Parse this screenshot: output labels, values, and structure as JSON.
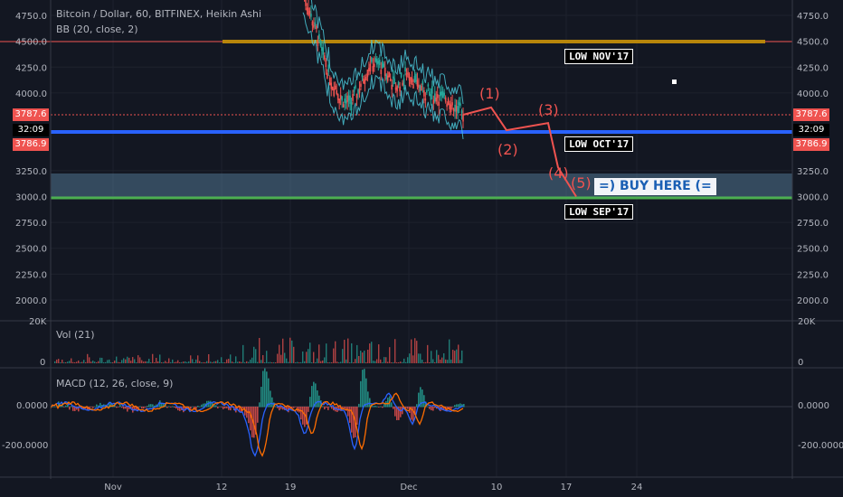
{
  "header": {
    "symbol": "Bitcoin / Dollar, 60, BITFINEX, Heikin Ashi",
    "bb": "BB (20, close, 2)",
    "vol": "Vol (21)",
    "macd": "MACD (12, 26, close, 9)"
  },
  "price_axis": {
    "ticks": [
      "4750.0",
      "4500.0",
      "4250.0",
      "4000.0",
      "3250.0",
      "3000.0",
      "2750.0",
      "2500.0",
      "2250.0",
      "2000.0"
    ],
    "tick_values": [
      4750,
      4500,
      4250,
      4000,
      3250,
      3000,
      2750,
      2500,
      2250,
      2000
    ]
  },
  "badges": {
    "price_top": "3787.6",
    "countdown": "32:09",
    "price_bottom": "3786.9"
  },
  "vol_axis": {
    "top": "20K",
    "zero": "0"
  },
  "macd_axis": {
    "ticks": [
      "0.0000",
      "-200.0000"
    ]
  },
  "time_axis": {
    "labels": [
      "Nov",
      "12",
      "19",
      "Dec",
      "10",
      "17",
      "24"
    ]
  },
  "annotations": {
    "low_nov": "LOW NOV'17",
    "low_oct": "LOW OCT'17",
    "low_sep": "LOW SEP'17",
    "buy": "=) BUY HERE (=",
    "wave1": "(1)",
    "wave2": "(2)",
    "wave3": "(3)",
    "wave4": "(4)",
    "wave5": "(5)"
  },
  "colors": {
    "background": "#131722",
    "up": "#26a69a",
    "down": "#ef5350",
    "nov_line": "#b8860b",
    "oct_line": "#2962ff",
    "sep_line": "#4caf50",
    "zone": "#5d8aa8",
    "macd_line": "#2962ff",
    "signal_line": "#ff6d00"
  },
  "chart_data": {
    "type": "line",
    "title": "Bitcoin / Dollar, 60, BITFINEX, Heikin Ashi",
    "ylim": [
      1850,
      4950
    ],
    "horizontal_levels": [
      {
        "name": "LOW NOV'17",
        "value": 4490
      },
      {
        "name": "LOW OCT'17",
        "value": 3870
      },
      {
        "name": "LOW SEP'17",
        "value": 2975
      }
    ],
    "buy_zone": [
      2980,
      3210
    ],
    "current_price": 3787.6,
    "price_path": [
      {
        "x": "Nov 20",
        "y": 4950
      },
      {
        "x": "Nov 21",
        "y": 4700
      },
      {
        "x": "Nov 22",
        "y": 4400
      },
      {
        "x": "Nov 23",
        "y": 4100
      },
      {
        "x": "Nov 24",
        "y": 3950
      },
      {
        "x": "Nov 25",
        "y": 3900
      },
      {
        "x": "Nov 26",
        "y": 4050
      },
      {
        "x": "Nov 27",
        "y": 4250
      },
      {
        "x": "Nov 28",
        "y": 4300
      },
      {
        "x": "Nov 29",
        "y": 4150
      },
      {
        "x": "Nov 30",
        "y": 4050
      },
      {
        "x": "Dec 1",
        "y": 4200
      },
      {
        "x": "Dec 2",
        "y": 4100
      },
      {
        "x": "Dec 3",
        "y": 4000
      },
      {
        "x": "Dec 4",
        "y": 3980
      },
      {
        "x": "Dec 5",
        "y": 3950
      },
      {
        "x": "Dec 6",
        "y": 3870
      },
      {
        "x": "Dec 7",
        "y": 3790
      }
    ],
    "projection": [
      {
        "label": "(1)",
        "x": "Dec 9",
        "y": 3860
      },
      {
        "label": "(2)",
        "x": "Dec 11",
        "y": 3640
      },
      {
        "label": "(3)",
        "x": "Dec 15",
        "y": 3710
      },
      {
        "label": "(4)",
        "x": "Dec 16",
        "y": 3280
      },
      {
        "label": "(5)",
        "x": "Dec 17",
        "y": 3000
      }
    ],
    "macd_range": [
      -300,
      100
    ]
  }
}
